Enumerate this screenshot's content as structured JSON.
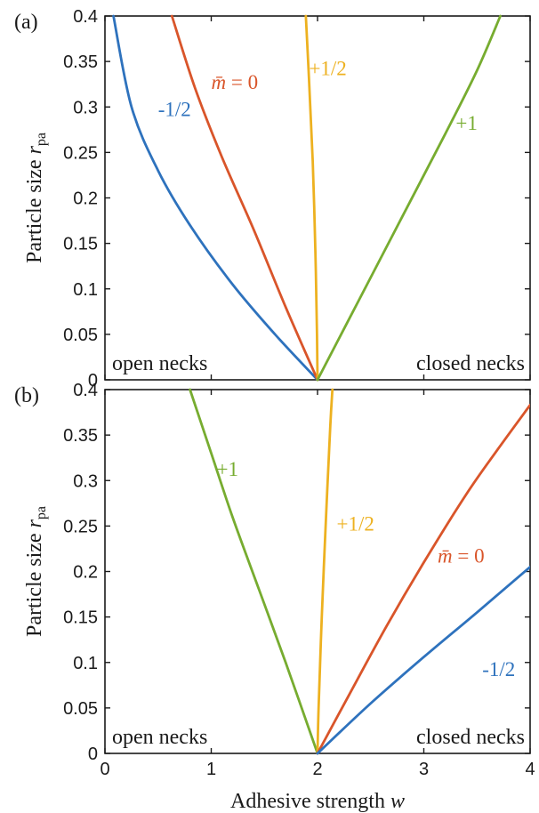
{
  "chart_data": [
    {
      "type": "line",
      "panel_label": "(a)",
      "xlim": [
        0,
        4
      ],
      "ylim": [
        0,
        0.4
      ],
      "x_ticks": [
        "0",
        "1",
        "2",
        "3",
        "4"
      ],
      "y_ticks": [
        "0",
        "0.05",
        "0.1",
        "0.15",
        "0.2",
        "0.25",
        "0.3",
        "0.35",
        "0.4"
      ],
      "show_x_ticklabels": false,
      "xlabel": "",
      "ylabel": "Particle size r",
      "ylabel_sub": "pa",
      "region_labels": {
        "left": "open necks",
        "right": "closed necks"
      },
      "series": [
        {
          "name": "-1/2",
          "label_text": "-1/2",
          "color": "#2e72bd",
          "label_at": [
            0.5,
            0.29
          ],
          "x": [
            2.0,
            1.6,
            1.2,
            0.8,
            0.5,
            0.25,
            0.08
          ],
          "y": [
            0.0,
            0.05,
            0.105,
            0.17,
            0.23,
            0.3,
            0.4
          ]
        },
        {
          "name": "m̄ = 0",
          "label_text": "m̄ = 0",
          "color": "#d9552a",
          "label_at": [
            1.0,
            0.32
          ],
          "x": [
            2.0,
            1.7,
            1.4,
            1.1,
            0.85,
            0.63
          ],
          "y": [
            0.0,
            0.08,
            0.165,
            0.245,
            0.32,
            0.4
          ]
        },
        {
          "name": "+1/2",
          "label_text": "+1/2",
          "color": "#edb120",
          "label_at": [
            1.92,
            0.335
          ],
          "x": [
            2.0,
            1.995,
            1.98,
            1.955,
            1.92,
            1.89
          ],
          "y": [
            0.0,
            0.05,
            0.14,
            0.24,
            0.33,
            0.4
          ]
        },
        {
          "name": "+1",
          "label_text": "+1",
          "color": "#77ac30",
          "label_at": [
            3.3,
            0.275
          ],
          "x": [
            2.0,
            2.4,
            2.8,
            3.2,
            3.5,
            3.72
          ],
          "y": [
            0.0,
            0.09,
            0.18,
            0.27,
            0.34,
            0.4
          ]
        }
      ]
    },
    {
      "type": "line",
      "panel_label": "(b)",
      "xlim": [
        0,
        4
      ],
      "ylim": [
        0,
        0.4
      ],
      "x_ticks": [
        "0",
        "1",
        "2",
        "3",
        "4"
      ],
      "y_ticks": [
        "0",
        "0.05",
        "0.1",
        "0.15",
        "0.2",
        "0.25",
        "0.3",
        "0.35",
        "0.4"
      ],
      "show_x_ticklabels": true,
      "xlabel": "Adhesive strength w",
      "ylabel": "Particle size r",
      "ylabel_sub": "pa",
      "region_labels": {
        "left": "open necks",
        "right": "closed necks"
      },
      "series": [
        {
          "name": "+1",
          "label_text": "+1",
          "color": "#77ac30",
          "label_at": [
            1.05,
            0.305
          ],
          "x": [
            2.0,
            1.7,
            1.45,
            1.2,
            1.0,
            0.8
          ],
          "y": [
            0.0,
            0.1,
            0.18,
            0.26,
            0.33,
            0.4
          ]
        },
        {
          "name": "+1/2",
          "label_text": "+1/2",
          "color": "#edb120",
          "label_at": [
            2.18,
            0.245
          ],
          "x": [
            2.0,
            2.01,
            2.04,
            2.08,
            2.12,
            2.14
          ],
          "y": [
            0.0,
            0.05,
            0.15,
            0.26,
            0.36,
            0.4
          ]
        },
        {
          "name": "m̄ = 0",
          "label_text": "m̄ = 0",
          "color": "#d9552a",
          "label_at": [
            3.13,
            0.21
          ],
          "x": [
            2.0,
            2.3,
            2.65,
            3.0,
            3.4,
            3.7,
            4.0
          ],
          "y": [
            0.0,
            0.065,
            0.14,
            0.21,
            0.285,
            0.335,
            0.383
          ]
        },
        {
          "name": "-1/2",
          "label_text": "-1/2",
          "color": "#2e72bd",
          "label_at": [
            3.55,
            0.085
          ],
          "x": [
            2.0,
            2.5,
            3.0,
            3.5,
            4.0
          ],
          "y": [
            0.0,
            0.055,
            0.106,
            0.155,
            0.205
          ]
        }
      ]
    }
  ]
}
